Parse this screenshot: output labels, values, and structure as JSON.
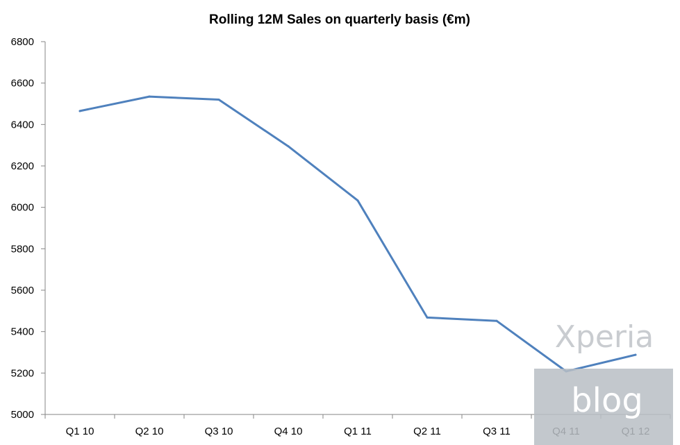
{
  "chart_data": {
    "type": "line",
    "title": "Rolling 12M Sales on quarterly basis (€m)",
    "xlabel": "",
    "ylabel": "",
    "categories": [
      "Q1 10",
      "Q2 10",
      "Q3 10",
      "Q4 10",
      "Q1 11",
      "Q2 11",
      "Q3 11",
      "Q4 11",
      "Q1 12"
    ],
    "series": [
      {
        "values": [
          6465,
          6535,
          6520,
          6295,
          6033,
          5468,
          5452,
          5208,
          5288
        ]
      }
    ],
    "ylim": [
      5000,
      6800
    ],
    "yticks": [
      5000,
      5200,
      5400,
      5600,
      5800,
      6000,
      6200,
      6400,
      6600,
      6800
    ],
    "grid": false,
    "legend": "none",
    "colors": {
      "line": "#4f81bd",
      "axis": "#868686"
    }
  },
  "watermark": {
    "top_text": "Xperia",
    "bottom_text": "blog",
    "box_color": "#b9bec4"
  }
}
